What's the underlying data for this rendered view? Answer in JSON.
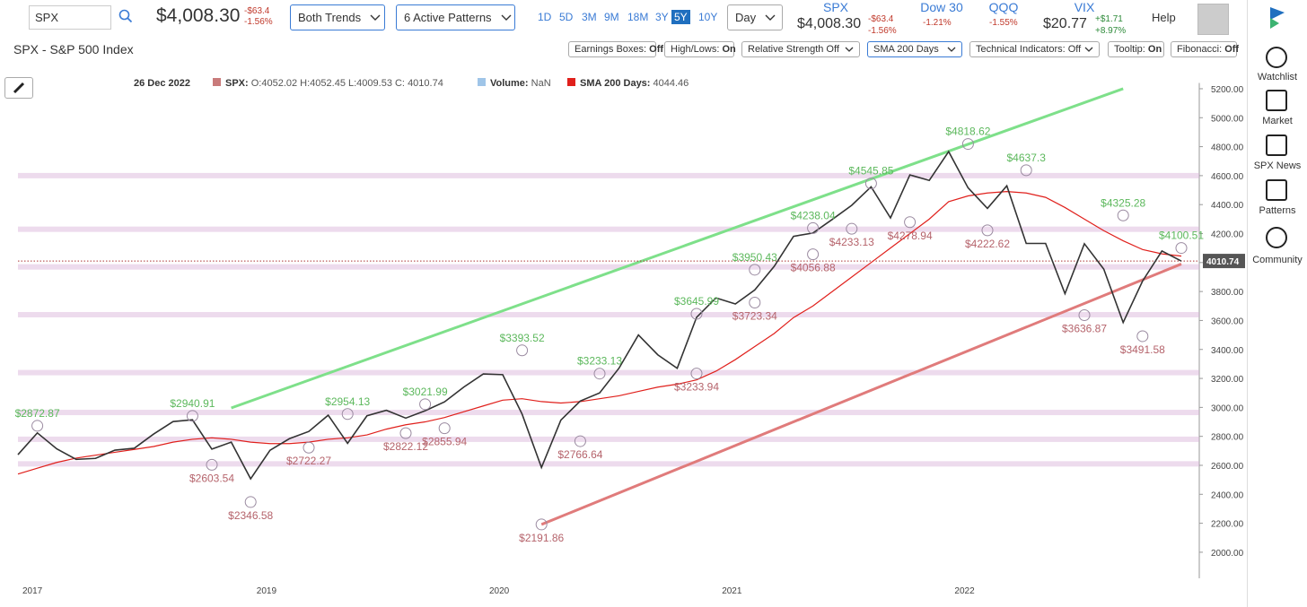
{
  "toolbar": {
    "symbol": "SPX",
    "price": "$4,008.30",
    "change": "-$63.4",
    "change_pct": "-1.56%",
    "trends": "Both Trends",
    "patterns": "6 Active Patterns",
    "ranges": [
      "1D",
      "5D",
      "3M",
      "9M",
      "18M",
      "3Y",
      "5Y",
      "10Y"
    ],
    "active_range_index": 6,
    "interval": "Day",
    "quotes": [
      {
        "name": "SPX",
        "price": "$4,008.30",
        "change": "-$63.4",
        "change_pct": "-1.56%"
      },
      {
        "name": "Dow 30",
        "change_pct": "-1.21%"
      },
      {
        "name": "QQQ",
        "change_pct": "-1.55%"
      },
      {
        "name": "VIX",
        "price": "$20.77",
        "change": "+$1.71",
        "change_pct": "+8.97%"
      }
    ],
    "help": "Help"
  },
  "title": "SPX - S&P 500 Index",
  "toggles": [
    {
      "label": "Earnings Boxes:",
      "state": "Off"
    },
    {
      "label": "High/Lows:",
      "state": "On"
    },
    {
      "label": "Relative Strength Off",
      "dropdown": true
    },
    {
      "label": "SMA 200 Days",
      "dropdown": true
    },
    {
      "label": "Technical Indicators: Off",
      "dropdown": true
    },
    {
      "label": "Tooltip:",
      "state": "On"
    },
    {
      "label": "Fibonacci:",
      "state": "Off"
    }
  ],
  "sidebar": [
    "Watchlist",
    "Market",
    "SPX News",
    "Patterns",
    "Community"
  ],
  "chart_data": {
    "type": "line",
    "date": "26 Dec 2022",
    "ohlc": "O:4052.02 H:4052.45 L:4009.53 C:",
    "last_price": 4010.74,
    "volume": {
      "name": "Volume:",
      "value": "NaN",
      "color": "#9fc5e8"
    },
    "categories": [
      "2017",
      null,
      null,
      null,
      null,
      null,
      null,
      null,
      null,
      null,
      null,
      null,
      null,
      "2019",
      null,
      null,
      null,
      null,
      null,
      null,
      null,
      null,
      null,
      null,
      null,
      "2020",
      null,
      null,
      null,
      null,
      null,
      null,
      null,
      null,
      null,
      null,
      null,
      "2021",
      null,
      null,
      null,
      null,
      null,
      null,
      null,
      null,
      null,
      null,
      null,
      "2022",
      null,
      null,
      null,
      null,
      null,
      null,
      null,
      null,
      null,
      null,
      null
    ],
    "series": [
      {
        "name": "SPX:",
        "color": "#333333",
        "values": [
          2674,
          2824,
          2714,
          2641,
          2648,
          2705,
          2718,
          2816,
          2902,
          2914,
          2712,
          2760,
          2507,
          2704,
          2784,
          2834,
          2946,
          2752,
          2942,
          2980,
          2926,
          2977,
          3038,
          3141,
          3231,
          3226,
          2954,
          2585,
          2912,
          3044,
          3100,
          3271,
          3500,
          3363,
          3270,
          3622,
          3756,
          3714,
          3811,
          3973,
          4181,
          4204,
          4298,
          4395,
          4523,
          4308,
          4605,
          4567,
          4766,
          4516,
          4374,
          4530,
          4132,
          4132,
          3785,
          4130,
          3955,
          3586,
          3872,
          4080,
          4010
        ]
      },
      {
        "name": "SMA 200 Days:",
        "color": "#e0201c",
        "values": [
          2540,
          2580,
          2620,
          2650,
          2670,
          2690,
          2710,
          2730,
          2760,
          2780,
          2790,
          2780,
          2760,
          2750,
          2750,
          2760,
          2780,
          2790,
          2810,
          2850,
          2880,
          2900,
          2930,
          2970,
          3010,
          3050,
          3060,
          3040,
          3030,
          3040,
          3060,
          3080,
          3110,
          3140,
          3160,
          3190,
          3250,
          3330,
          3420,
          3510,
          3620,
          3700,
          3800,
          3900,
          4000,
          4100,
          4200,
          4300,
          4420,
          4460,
          4480,
          4490,
          4480,
          4450,
          4380,
          4300,
          4220,
          4150,
          4090,
          4060,
          4044.46
        ]
      }
    ],
    "ylim": [
      1820,
      5240
    ],
    "yticks": [
      {
        "value": 2000,
        "label": "2000.00"
      },
      {
        "value": 2200,
        "label": "2200.00"
      },
      {
        "value": 2400,
        "label": "2400.00"
      },
      {
        "value": 2600,
        "label": "2600.00"
      },
      {
        "value": 2800,
        "label": "2800.00"
      },
      {
        "value": 3000,
        "label": "3000.00"
      },
      {
        "value": 3200,
        "label": "3200.00"
      },
      {
        "value": 3400,
        "label": "3400.00"
      },
      {
        "value": 3600,
        "label": "3600.00"
      },
      {
        "value": 3800,
        "label": "3800.00"
      },
      {
        "value": 4000,
        "label": "4000.00"
      },
      {
        "value": 4200,
        "label": "4200.00"
      },
      {
        "value": 4400,
        "label": "4400.00"
      },
      {
        "value": 4600,
        "label": "4600.00"
      },
      {
        "value": 4800,
        "label": "4800.00"
      },
      {
        "value": 5000,
        "label": "5000.00"
      },
      {
        "value": 5200,
        "label": "5200.00"
      }
    ],
    "levels": [
      4600,
      4230,
      3970,
      3640,
      3240,
      2965,
      2780,
      2610
    ],
    "trendlines": [
      {
        "color": "#7ee08a",
        "start": [
          11,
          2996
        ],
        "end": [
          57,
          5200
        ]
      },
      {
        "color": "#e07b7b",
        "start": [
          27,
          2191.86
        ],
        "end": [
          60,
          3990
        ]
      }
    ],
    "annotations": [
      {
        "label": "$2872.87",
        "index": 1,
        "value": 2872.87,
        "kind": "high"
      },
      {
        "label": "$2940.91",
        "index": 9,
        "value": 2940.91,
        "kind": "high"
      },
      {
        "label": "$2954.13",
        "index": 17,
        "value": 2954.13,
        "kind": "high"
      },
      {
        "label": "$3021.99",
        "index": 21,
        "value": 3021.99,
        "kind": "high"
      },
      {
        "label": "$3393.52",
        "index": 26,
        "value": 3393.52,
        "kind": "high"
      },
      {
        "label": "$3233.13",
        "index": 30,
        "value": 3233.13,
        "kind": "high"
      },
      {
        "label": "$3645.99",
        "index": 35,
        "value": 3645.99,
        "kind": "high"
      },
      {
        "label": "$3950.43",
        "index": 38,
        "value": 3950.43,
        "kind": "high"
      },
      {
        "label": "$4238.04",
        "index": 41,
        "value": 4238.04,
        "kind": "high"
      },
      {
        "label": "$4545.85",
        "index": 44,
        "value": 4545.85,
        "kind": "high"
      },
      {
        "label": "$4818.62",
        "index": 49,
        "value": 4818.62,
        "kind": "high"
      },
      {
        "label": "$4637.3",
        "index": 52,
        "value": 4637.3,
        "kind": "high"
      },
      {
        "label": "$4325.28",
        "index": 57,
        "value": 4325.28,
        "kind": "high"
      },
      {
        "label": "$4100.51",
        "index": 60,
        "value": 4100.51,
        "kind": "high"
      },
      {
        "label": "$2603.54",
        "index": 10,
        "value": 2603.54,
        "kind": "low"
      },
      {
        "label": "$2346.58",
        "index": 12,
        "value": 2346.58,
        "kind": "low"
      },
      {
        "label": "$2722.27",
        "index": 15,
        "value": 2722.27,
        "kind": "low"
      },
      {
        "label": "$2822.12",
        "index": 20,
        "value": 2822.12,
        "kind": "low"
      },
      {
        "label": "$2855.94",
        "index": 22,
        "value": 2855.94,
        "kind": "low"
      },
      {
        "label": "$2191.86",
        "index": 27,
        "value": 2191.86,
        "kind": "low"
      },
      {
        "label": "$2766.64",
        "index": 29,
        "value": 2766.64,
        "kind": "low"
      },
      {
        "label": "$3233.94",
        "index": 35,
        "value": 3233.94,
        "kind": "low"
      },
      {
        "label": "$3723.34",
        "index": 38,
        "value": 3723.34,
        "kind": "low"
      },
      {
        "label": "$4056.88",
        "index": 41,
        "value": 4056.88,
        "kind": "low"
      },
      {
        "label": "$4233.13",
        "index": 43,
        "value": 4233.13,
        "kind": "low"
      },
      {
        "label": "$4278.94",
        "index": 46,
        "value": 4278.94,
        "kind": "low"
      },
      {
        "label": "$4222.62",
        "index": 50,
        "value": 4222.62,
        "kind": "low"
      },
      {
        "label": "$3636.87",
        "index": 55,
        "value": 3636.87,
        "kind": "low"
      },
      {
        "label": "$3491.58",
        "index": 58,
        "value": 3491.58,
        "kind": "low"
      }
    ]
  }
}
